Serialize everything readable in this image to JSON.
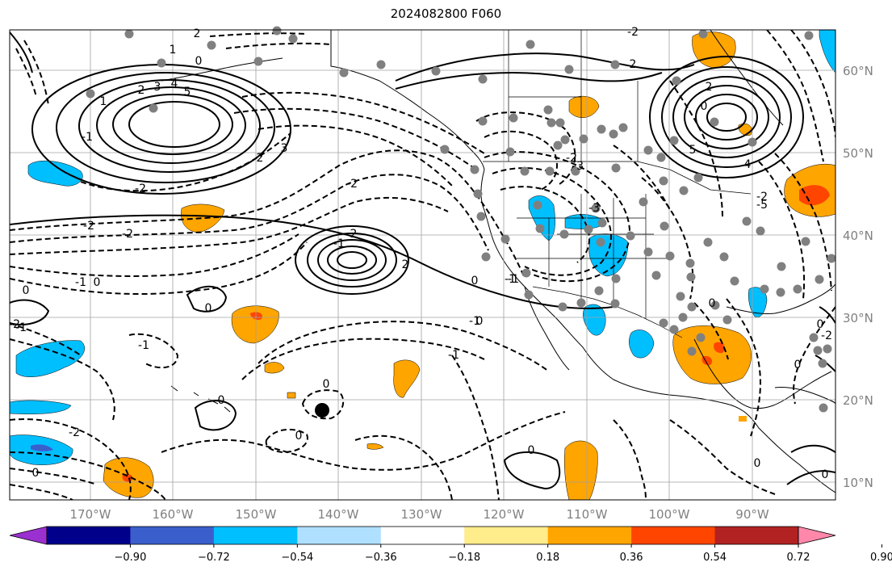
{
  "title": "2024082800 F060",
  "map": {
    "lat_labels": [
      "60°N",
      "50°N",
      "40°N",
      "30°N",
      "20°N",
      "10°N"
    ],
    "lon_labels": [
      "170°W",
      "160°W",
      "150°W",
      "140°W",
      "130°W",
      "120°W",
      "110°W",
      "100°W",
      "90°W"
    ],
    "contour_labels": [
      "1",
      "2",
      "0",
      "1",
      "2",
      "3",
      "4",
      "5",
      "-1",
      "-2",
      "2",
      "3",
      "-2",
      "-2",
      "-2",
      "-1",
      "-2",
      "-1",
      "2",
      "2",
      "-1",
      "0",
      "0",
      "-1",
      "0",
      "-1",
      "0",
      "0",
      "0",
      "-1",
      "-1",
      "0",
      "0",
      "-2",
      "-2",
      "-3",
      "-2",
      "2",
      "-3",
      "2",
      "0",
      "4",
      "5",
      "-5",
      "-2",
      "0",
      "-2",
      "0",
      "0",
      "0",
      "-1",
      "0",
      "0",
      "0"
    ],
    "colors": {
      "positive_contour": "#000000",
      "negative_contour": "#000000",
      "grid": "#a0a0a0",
      "station_marker": "#808080",
      "center_marker": "#000000"
    }
  },
  "colorbar": {
    "ticks": [
      "−0.90",
      "−0.72",
      "−0.54",
      "−0.36",
      "−0.18",
      "0.18",
      "0.36",
      "0.54",
      "0.72",
      "0.90"
    ],
    "colors": [
      "#9b30d0",
      "#00008b",
      "#3a5fcd",
      "#00bfff",
      "#b0e0ff",
      "#ffffff",
      "#ffec8b",
      "#ffa500",
      "#ff4500",
      "#b22222",
      "#ff88aa"
    ]
  }
}
